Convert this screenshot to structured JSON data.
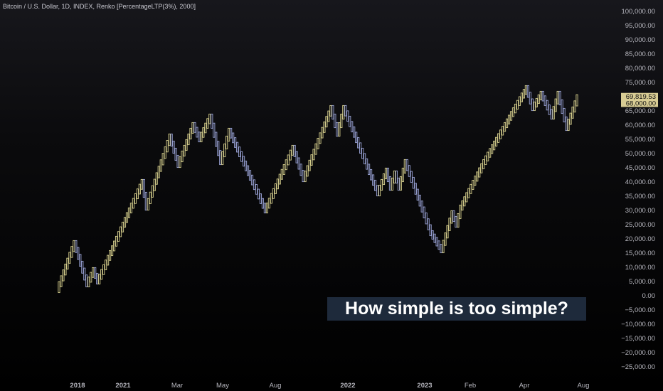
{
  "header": {
    "title": "Bitcoin / U.S. Dollar, 1D, INDEX, Renko [PercentageLTP(3%), 2000]"
  },
  "callout": {
    "text": "How simple is too simple?"
  },
  "price_labels": {
    "last": "69,819.53",
    "target": "68,000.00"
  },
  "colors": {
    "up": "#d6cf8d",
    "down": "#9aa3d6",
    "accent": "#d8cc94",
    "callout_bg": "#1e2a3b"
  },
  "chart_data": {
    "type": "renko",
    "title": "Bitcoin / U.S. Dollar, 1D, INDEX, Renko [PercentageLTP(3%), 2000]",
    "ylim": [
      -27000,
      101000
    ],
    "y_ticks": [
      100000,
      95000,
      90000,
      85000,
      80000,
      75000,
      70000,
      65000,
      60000,
      55000,
      50000,
      45000,
      40000,
      35000,
      30000,
      25000,
      20000,
      15000,
      10000,
      5000,
      0,
      -5000,
      -10000,
      -15000,
      -20000,
      -25000
    ],
    "y_tick_labels": [
      "100,000.00",
      "95,000.00",
      "90,000.00",
      "85,000.00",
      "80,000.00",
      "75,000.00",
      "70,000.00",
      "65,000.00",
      "60,000.00",
      "55,000.00",
      "50,000.00",
      "45,000.00",
      "40,000.00",
      "35,000.00",
      "30,000.00",
      "25,000.00",
      "20,000.00",
      "15,000.00",
      "10,000.00",
      "5,000.00",
      "0.00",
      "−5,000.00",
      "−10,000.00",
      "−15,000.00",
      "−20,000.00",
      "−25,000.00"
    ],
    "x_tick_labels": [
      "2018",
      "2021",
      "Mar",
      "May",
      "Aug",
      "2022",
      "2023",
      "Feb",
      "Apr",
      "Aug"
    ],
    "x_tick_bold": [
      true,
      true,
      false,
      false,
      false,
      true,
      true,
      false,
      false,
      false
    ],
    "brick_count": 245,
    "price_path": [
      {
        "i": 0,
        "v": 2000
      },
      {
        "i": 8,
        "v": 18500
      },
      {
        "i": 14,
        "v": 4000
      },
      {
        "i": 17,
        "v": 9000
      },
      {
        "i": 19,
        "v": 5000
      },
      {
        "i": 40,
        "v": 40000
      },
      {
        "i": 42,
        "v": 31000
      },
      {
        "i": 53,
        "v": 56000
      },
      {
        "i": 57,
        "v": 46000
      },
      {
        "i": 64,
        "v": 60000
      },
      {
        "i": 67,
        "v": 55000
      },
      {
        "i": 72,
        "v": 63000
      },
      {
        "i": 77,
        "v": 47000
      },
      {
        "i": 81,
        "v": 58000
      },
      {
        "i": 98,
        "v": 30000
      },
      {
        "i": 111,
        "v": 52000
      },
      {
        "i": 116,
        "v": 41000
      },
      {
        "i": 129,
        "v": 66000
      },
      {
        "i": 132,
        "v": 57000
      },
      {
        "i": 135,
        "v": 66000
      },
      {
        "i": 151,
        "v": 36000
      },
      {
        "i": 155,
        "v": 44000
      },
      {
        "i": 157,
        "v": 38000
      },
      {
        "i": 159,
        "v": 43000
      },
      {
        "i": 161,
        "v": 38000
      },
      {
        "i": 164,
        "v": 47000
      },
      {
        "i": 176,
        "v": 22000
      },
      {
        "i": 181,
        "v": 16000
      },
      {
        "i": 186,
        "v": 29000
      },
      {
        "i": 188,
        "v": 25000
      },
      {
        "i": 190,
        "v": 31000
      },
      {
        "i": 201,
        "v": 47000
      },
      {
        "i": 221,
        "v": 73000
      },
      {
        "i": 224,
        "v": 66000
      },
      {
        "i": 228,
        "v": 71000
      },
      {
        "i": 233,
        "v": 63000
      },
      {
        "i": 236,
        "v": 71000
      },
      {
        "i": 240,
        "v": 59000
      },
      {
        "i": 245,
        "v": 69800
      }
    ],
    "last_price": 69819.53,
    "reference_price": 68000
  }
}
